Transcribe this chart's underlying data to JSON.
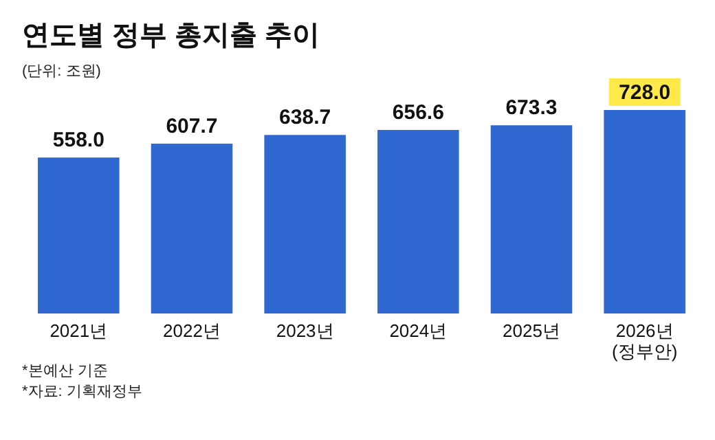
{
  "chart_data": {
    "type": "bar",
    "title": "연도별 정부 총지출 추이",
    "subtitle": "(단위: 조원)",
    "categories": [
      "2021년",
      "2022년",
      "2023년",
      "2024년",
      "2025년",
      "2026년\n(정부안)"
    ],
    "values": [
      558.0,
      607.7,
      638.7,
      656.6,
      673.3,
      728.0
    ],
    "value_labels": [
      "558.0",
      "607.7",
      "638.7",
      "656.6",
      "673.3",
      "728.0"
    ],
    "color": "#2f68d0",
    "annotations": [
      "*본예산 기준",
      "*자료: 기획재정부"
    ]
  }
}
